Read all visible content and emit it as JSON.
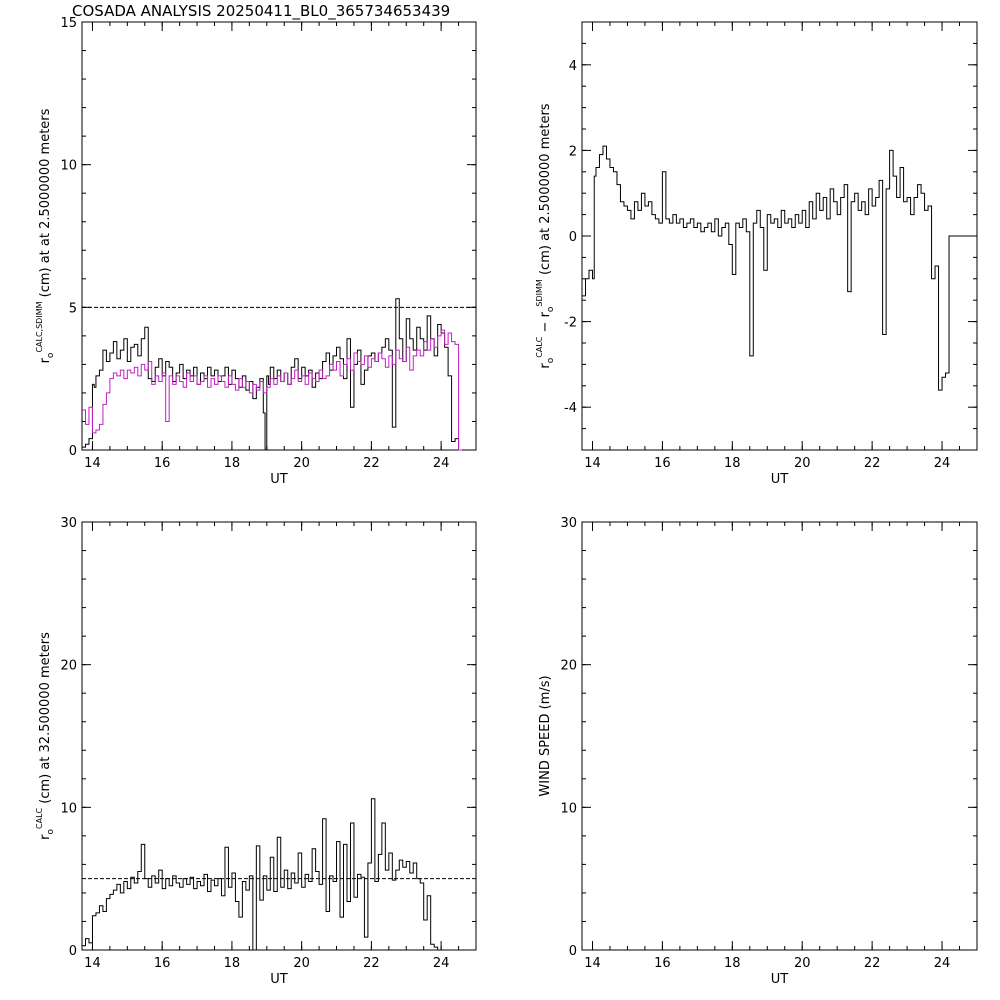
{
  "title": "COSADA ANALYSIS 20250411_BL0_365734653439",
  "chart_data": [
    {
      "type": "line",
      "xlabel": "UT",
      "ylabel": {
        "main": "r",
        "sub": "o",
        "sup": "CALC,SDIMM",
        "rest": " (cm) at  at 2.5000000 meters"
      },
      "xlim": [
        13.7,
        25.0
      ],
      "ylim": [
        0,
        15
      ],
      "xticks": [
        14,
        16,
        18,
        20,
        22,
        24
      ],
      "yticks": [
        0,
        5,
        10,
        15
      ],
      "xminor": 0.5,
      "yminor": 1,
      "grid": false,
      "reference_line": 5,
      "series": [
        {
          "color": "#000000",
          "x": [
            13.7,
            13.8,
            13.9,
            14.0,
            14.05,
            14.1,
            14.2,
            14.3,
            14.4,
            14.5,
            14.6,
            14.7,
            14.8,
            14.9,
            15.0,
            15.1,
            15.2,
            15.3,
            15.4,
            15.5,
            15.6,
            15.7,
            15.8,
            15.9,
            16.0,
            16.1,
            16.2,
            16.3,
            16.4,
            16.5,
            16.6,
            16.7,
            16.8,
            16.9,
            17.0,
            17.1,
            17.2,
            17.3,
            17.4,
            17.5,
            17.6,
            17.7,
            17.8,
            17.9,
            18.0,
            18.1,
            18.2,
            18.3,
            18.4,
            18.5,
            18.6,
            18.7,
            18.8,
            18.9,
            18.95,
            19.0,
            19.05,
            19.1,
            19.2,
            19.3,
            19.4,
            19.5,
            19.6,
            19.7,
            19.8,
            19.9,
            20.0,
            20.1,
            20.2,
            20.3,
            20.4,
            20.5,
            20.6,
            20.7,
            20.8,
            20.9,
            21.0,
            21.1,
            21.2,
            21.3,
            21.4,
            21.5,
            21.6,
            21.7,
            21.8,
            21.9,
            22.0,
            22.1,
            22.2,
            22.3,
            22.4,
            22.5,
            22.6,
            22.7,
            22.8,
            22.9,
            23.0,
            23.1,
            23.2,
            23.3,
            23.4,
            23.5,
            23.6,
            23.7,
            23.8,
            23.9,
            24.0,
            24.1,
            24.2,
            24.3,
            24.4,
            24.5
          ],
          "y": [
            0.1,
            0.2,
            0.4,
            2.3,
            2.2,
            2.6,
            2.8,
            3.5,
            3.1,
            3.4,
            3.8,
            3.2,
            3.5,
            3.9,
            3.1,
            3.6,
            3.7,
            3.3,
            3.9,
            4.3,
            2.5,
            2.4,
            2.9,
            3.2,
            2.6,
            3.1,
            2.9,
            2.4,
            2.7,
            3.0,
            2.5,
            2.8,
            2.6,
            2.9,
            2.3,
            2.7,
            2.5,
            2.9,
            2.6,
            2.8,
            2.4,
            2.6,
            2.9,
            2.3,
            2.8,
            2.5,
            2.2,
            2.6,
            2.1,
            2.4,
            1.8,
            2.2,
            2.5,
            1.3,
            0,
            2.6,
            2.3,
            2.9,
            2.5,
            2.8,
            2.4,
            2.7,
            2.3,
            2.9,
            3.2,
            2.5,
            2.9,
            2.6,
            2.8,
            2.2,
            2.7,
            2.5,
            3.1,
            3.4,
            2.8,
            3.3,
            3.6,
            3.2,
            2.5,
            3.9,
            1.5,
            3.0,
            3.5,
            2.3,
            2.8,
            3.3,
            3.4,
            3.1,
            3.4,
            3.6,
            3.9,
            3.5,
            0.8,
            5.3,
            3.9,
            3.1,
            4.6,
            3.9,
            3.5,
            4.3,
            3.9,
            3.5,
            4.7,
            3.9,
            3.3,
            4.4,
            4.1,
            3.6,
            2.6,
            0.3,
            0.4,
            0.1
          ]
        },
        {
          "color": "#c020c0",
          "x": [
            13.7,
            13.8,
            13.9,
            14.0,
            14.1,
            14.2,
            14.3,
            14.4,
            14.5,
            14.6,
            14.7,
            14.8,
            14.9,
            15.0,
            15.1,
            15.2,
            15.3,
            15.4,
            15.5,
            15.6,
            15.7,
            15.8,
            15.9,
            16.0,
            16.1,
            16.2,
            16.3,
            16.4,
            16.5,
            16.6,
            16.7,
            16.8,
            16.9,
            17.0,
            17.1,
            17.2,
            17.3,
            17.4,
            17.5,
            17.6,
            17.7,
            17.8,
            17.9,
            18.0,
            18.1,
            18.2,
            18.3,
            18.4,
            18.5,
            18.6,
            18.7,
            18.8,
            18.9,
            19.0,
            19.1,
            19.2,
            19.3,
            19.4,
            19.5,
            19.6,
            19.7,
            19.8,
            19.9,
            20.0,
            20.1,
            20.2,
            20.3,
            20.4,
            20.5,
            20.6,
            20.7,
            20.8,
            20.9,
            21.0,
            21.1,
            21.2,
            21.3,
            21.4,
            21.5,
            21.6,
            21.7,
            21.8,
            21.9,
            22.0,
            22.1,
            22.2,
            22.3,
            22.4,
            22.5,
            22.6,
            22.7,
            22.8,
            22.9,
            23.0,
            23.1,
            23.2,
            23.3,
            23.4,
            23.5,
            23.6,
            23.7,
            23.8,
            23.9,
            24.0,
            24.1,
            24.2,
            24.3,
            24.4,
            24.5,
            24.6
          ],
          "y": [
            1.4,
            0.9,
            1.5,
            0.6,
            0.7,
            0.9,
            1.6,
            2.0,
            2.5,
            2.7,
            2.6,
            2.8,
            2.5,
            2.8,
            2.7,
            2.9,
            2.6,
            3.0,
            2.8,
            3.1,
            2.3,
            2.6,
            2.4,
            2.7,
            1.0,
            2.6,
            2.3,
            2.6,
            2.4,
            2.2,
            2.7,
            2.4,
            2.6,
            2.3,
            2.4,
            2.6,
            2.2,
            2.5,
            2.3,
            2.6,
            2.4,
            2.2,
            2.6,
            2.3,
            2.1,
            2.5,
            2.2,
            2.4,
            2.0,
            2.3,
            2.1,
            2.4,
            2.0,
            2.2,
            2.5,
            2.3,
            2.6,
            2.4,
            2.7,
            2.3,
            2.5,
            2.8,
            2.4,
            2.6,
            2.3,
            2.7,
            2.5,
            2.4,
            2.8,
            2.5,
            2.6,
            3.0,
            2.8,
            3.1,
            2.6,
            3.0,
            3.2,
            2.8,
            3.4,
            3.1,
            3.0,
            3.3,
            2.9,
            3.2,
            3.1,
            3.4,
            3.2,
            2.9,
            3.3,
            3.0,
            3.5,
            3.2,
            3.1,
            3.6,
            2.8,
            3.3,
            3.5,
            3.3,
            3.8,
            3.5,
            3.9,
            3.6,
            4.0,
            4.2,
            3.7,
            4.1,
            3.8,
            3.7,
            0.0,
            0.0
          ]
        }
      ]
    },
    {
      "type": "line",
      "xlabel": "UT",
      "ylabel": {
        "main": "r",
        "sub": "o",
        "sup": "CALC",
        "mid": " − r",
        "sub2": "o",
        "sup2": "SDIMM",
        "rest": " (cm) at 2.5000000 meters"
      },
      "xlim": [
        13.7,
        25.0
      ],
      "ylim": [
        -5,
        5
      ],
      "xticks": [
        14,
        16,
        18,
        20,
        22,
        24
      ],
      "yticks": [
        -4,
        -2,
        0,
        2,
        4
      ],
      "xminor": 0.5,
      "yminor": 0.5,
      "grid": false,
      "series": [
        {
          "color": "#000000",
          "x": [
            13.7,
            13.8,
            13.9,
            14.0,
            14.05,
            14.1,
            14.2,
            14.3,
            14.4,
            14.5,
            14.6,
            14.7,
            14.8,
            14.9,
            15.0,
            15.1,
            15.2,
            15.3,
            15.4,
            15.5,
            15.6,
            15.7,
            15.8,
            15.9,
            16.0,
            16.1,
            16.2,
            16.3,
            16.4,
            16.5,
            16.6,
            16.7,
            16.8,
            16.9,
            17.0,
            17.1,
            17.2,
            17.3,
            17.4,
            17.5,
            17.6,
            17.7,
            17.8,
            17.9,
            18.0,
            18.1,
            18.2,
            18.3,
            18.4,
            18.5,
            18.6,
            18.7,
            18.8,
            18.9,
            19.0,
            19.1,
            19.2,
            19.3,
            19.4,
            19.5,
            19.6,
            19.7,
            19.8,
            19.9,
            20.0,
            20.1,
            20.2,
            20.3,
            20.4,
            20.5,
            20.6,
            20.7,
            20.8,
            20.9,
            21.0,
            21.1,
            21.2,
            21.3,
            21.4,
            21.5,
            21.6,
            21.7,
            21.8,
            21.9,
            22.0,
            22.1,
            22.2,
            22.3,
            22.4,
            22.5,
            22.6,
            22.7,
            22.8,
            22.9,
            23.0,
            23.1,
            23.2,
            23.3,
            23.4,
            23.5,
            23.6,
            23.7,
            23.8,
            23.9,
            24.0,
            24.1,
            24.2,
            24.3,
            24.4,
            24.5,
            24.6,
            24.7,
            24.8,
            24.9,
            25.0
          ],
          "y": [
            -1.4,
            -1.0,
            -0.8,
            -1.0,
            1.4,
            1.6,
            1.9,
            2.1,
            1.8,
            1.6,
            1.5,
            1.2,
            0.8,
            0.7,
            0.6,
            0.4,
            0.8,
            0.6,
            1.0,
            0.7,
            0.8,
            0.5,
            0.4,
            0.3,
            1.5,
            0.4,
            0.3,
            0.5,
            0.3,
            0.4,
            0.2,
            0.3,
            0.4,
            0.2,
            0.3,
            0.1,
            0.2,
            0.3,
            0.1,
            0.4,
            0.0,
            0.2,
            0.3,
            -0.2,
            -0.9,
            0.3,
            0.2,
            0.4,
            0.1,
            -2.8,
            0.3,
            0.6,
            0.2,
            -0.8,
            0.5,
            0.3,
            0.4,
            0.2,
            0.6,
            0.3,
            0.4,
            0.2,
            0.5,
            0.3,
            0.6,
            0.2,
            0.8,
            0.4,
            1.0,
            0.6,
            0.9,
            0.4,
            1.1,
            0.8,
            0.5,
            0.9,
            1.2,
            -1.3,
            0.8,
            1.0,
            0.6,
            0.8,
            0.5,
            1.1,
            0.7,
            0.9,
            1.3,
            -2.3,
            1.1,
            2.0,
            1.4,
            0.9,
            1.6,
            0.8,
            0.9,
            0.5,
            0.9,
            1.2,
            1.0,
            0.6,
            0.7,
            -1.0,
            -0.7,
            -3.6,
            -3.3,
            -3.2,
            0.0,
            0.0,
            0.0,
            0.0,
            0.0,
            0.0,
            0.0,
            0.0,
            0.0
          ]
        }
      ]
    },
    {
      "type": "line",
      "xlabel": "UT",
      "ylabel": {
        "main": "r",
        "sub": "o",
        "sup": "CALC",
        "rest": " (cm) at 32.500000 meters"
      },
      "xlim": [
        13.7,
        25.0
      ],
      "ylim": [
        0,
        30
      ],
      "xticks": [
        14,
        16,
        18,
        20,
        22,
        24
      ],
      "yticks": [
        0,
        10,
        20,
        30
      ],
      "xminor": 0.5,
      "yminor": 2,
      "grid": false,
      "reference_line": 5,
      "series": [
        {
          "color": "#000000",
          "x": [
            13.7,
            13.8,
            13.9,
            14.0,
            14.1,
            14.2,
            14.3,
            14.4,
            14.5,
            14.6,
            14.7,
            14.8,
            14.9,
            15.0,
            15.1,
            15.2,
            15.3,
            15.4,
            15.5,
            15.6,
            15.7,
            15.8,
            15.9,
            16.0,
            16.1,
            16.2,
            16.3,
            16.4,
            16.5,
            16.6,
            16.7,
            16.8,
            16.9,
            17.0,
            17.1,
            17.2,
            17.3,
            17.4,
            17.5,
            17.6,
            17.7,
            17.8,
            17.9,
            18.0,
            18.1,
            18.2,
            18.3,
            18.4,
            18.5,
            18.6,
            18.7,
            18.8,
            18.9,
            19.0,
            19.1,
            19.2,
            19.3,
            19.4,
            19.5,
            19.6,
            19.7,
            19.8,
            19.9,
            20.0,
            20.1,
            20.2,
            20.3,
            20.4,
            20.5,
            20.6,
            20.7,
            20.8,
            20.9,
            21.0,
            21.1,
            21.2,
            21.3,
            21.4,
            21.5,
            21.6,
            21.7,
            21.8,
            21.9,
            22.0,
            22.1,
            22.2,
            22.3,
            22.4,
            22.5,
            22.6,
            22.7,
            22.8,
            22.9,
            23.0,
            23.1,
            23.2,
            23.3,
            23.4,
            23.5,
            23.6,
            23.7,
            23.8,
            23.9,
            24.0,
            24.1,
            24.2,
            24.3,
            24.4,
            24.5
          ],
          "y": [
            0.3,
            0.8,
            0.5,
            2.4,
            2.6,
            3.1,
            2.7,
            3.6,
            3.9,
            4.2,
            4.6,
            4.0,
            4.8,
            4.3,
            5.1,
            4.7,
            5.5,
            7.4,
            5.0,
            4.4,
            5.2,
            4.7,
            5.6,
            4.3,
            5.0,
            4.5,
            5.2,
            4.7,
            4.4,
            5.0,
            4.6,
            5.1,
            4.3,
            4.8,
            4.5,
            5.3,
            4.1,
            4.9,
            4.5,
            5.0,
            3.8,
            7.2,
            4.4,
            5.4,
            3.4,
            2.3,
            4.8,
            4.2,
            5.2,
            0.0,
            7.3,
            3.5,
            5.2,
            4.2,
            6.5,
            4.1,
            7.9,
            4.4,
            5.6,
            4.3,
            5.4,
            4.7,
            6.8,
            4.4,
            5.3,
            4.8,
            7.1,
            5.5,
            4.6,
            9.2,
            2.7,
            5.2,
            4.8,
            7.6,
            2.3,
            7.4,
            3.4,
            8.9,
            3.7,
            5.3,
            5.1,
            0.9,
            6.1,
            10.6,
            4.8,
            6.7,
            8.9,
            5.6,
            6.8,
            4.9,
            5.6,
            6.3,
            5.8,
            6.2,
            5.4,
            6.1,
            5.0,
            4.7,
            2.1,
            3.8,
            0.4,
            0.2,
            0.0,
            0.0,
            0.0,
            0.0,
            0.0,
            0.0,
            0.0
          ]
        }
      ]
    },
    {
      "type": "line",
      "xlabel": "UT",
      "ylabel": {
        "main": "WIND SPEED (m/s)"
      },
      "xlim": [
        13.7,
        25.0
      ],
      "ylim": [
        0,
        30
      ],
      "xticks": [
        14,
        16,
        18,
        20,
        22,
        24
      ],
      "yticks": [
        0,
        10,
        20,
        30
      ],
      "xminor": 0.5,
      "yminor": 2,
      "grid": false,
      "series": []
    }
  ]
}
